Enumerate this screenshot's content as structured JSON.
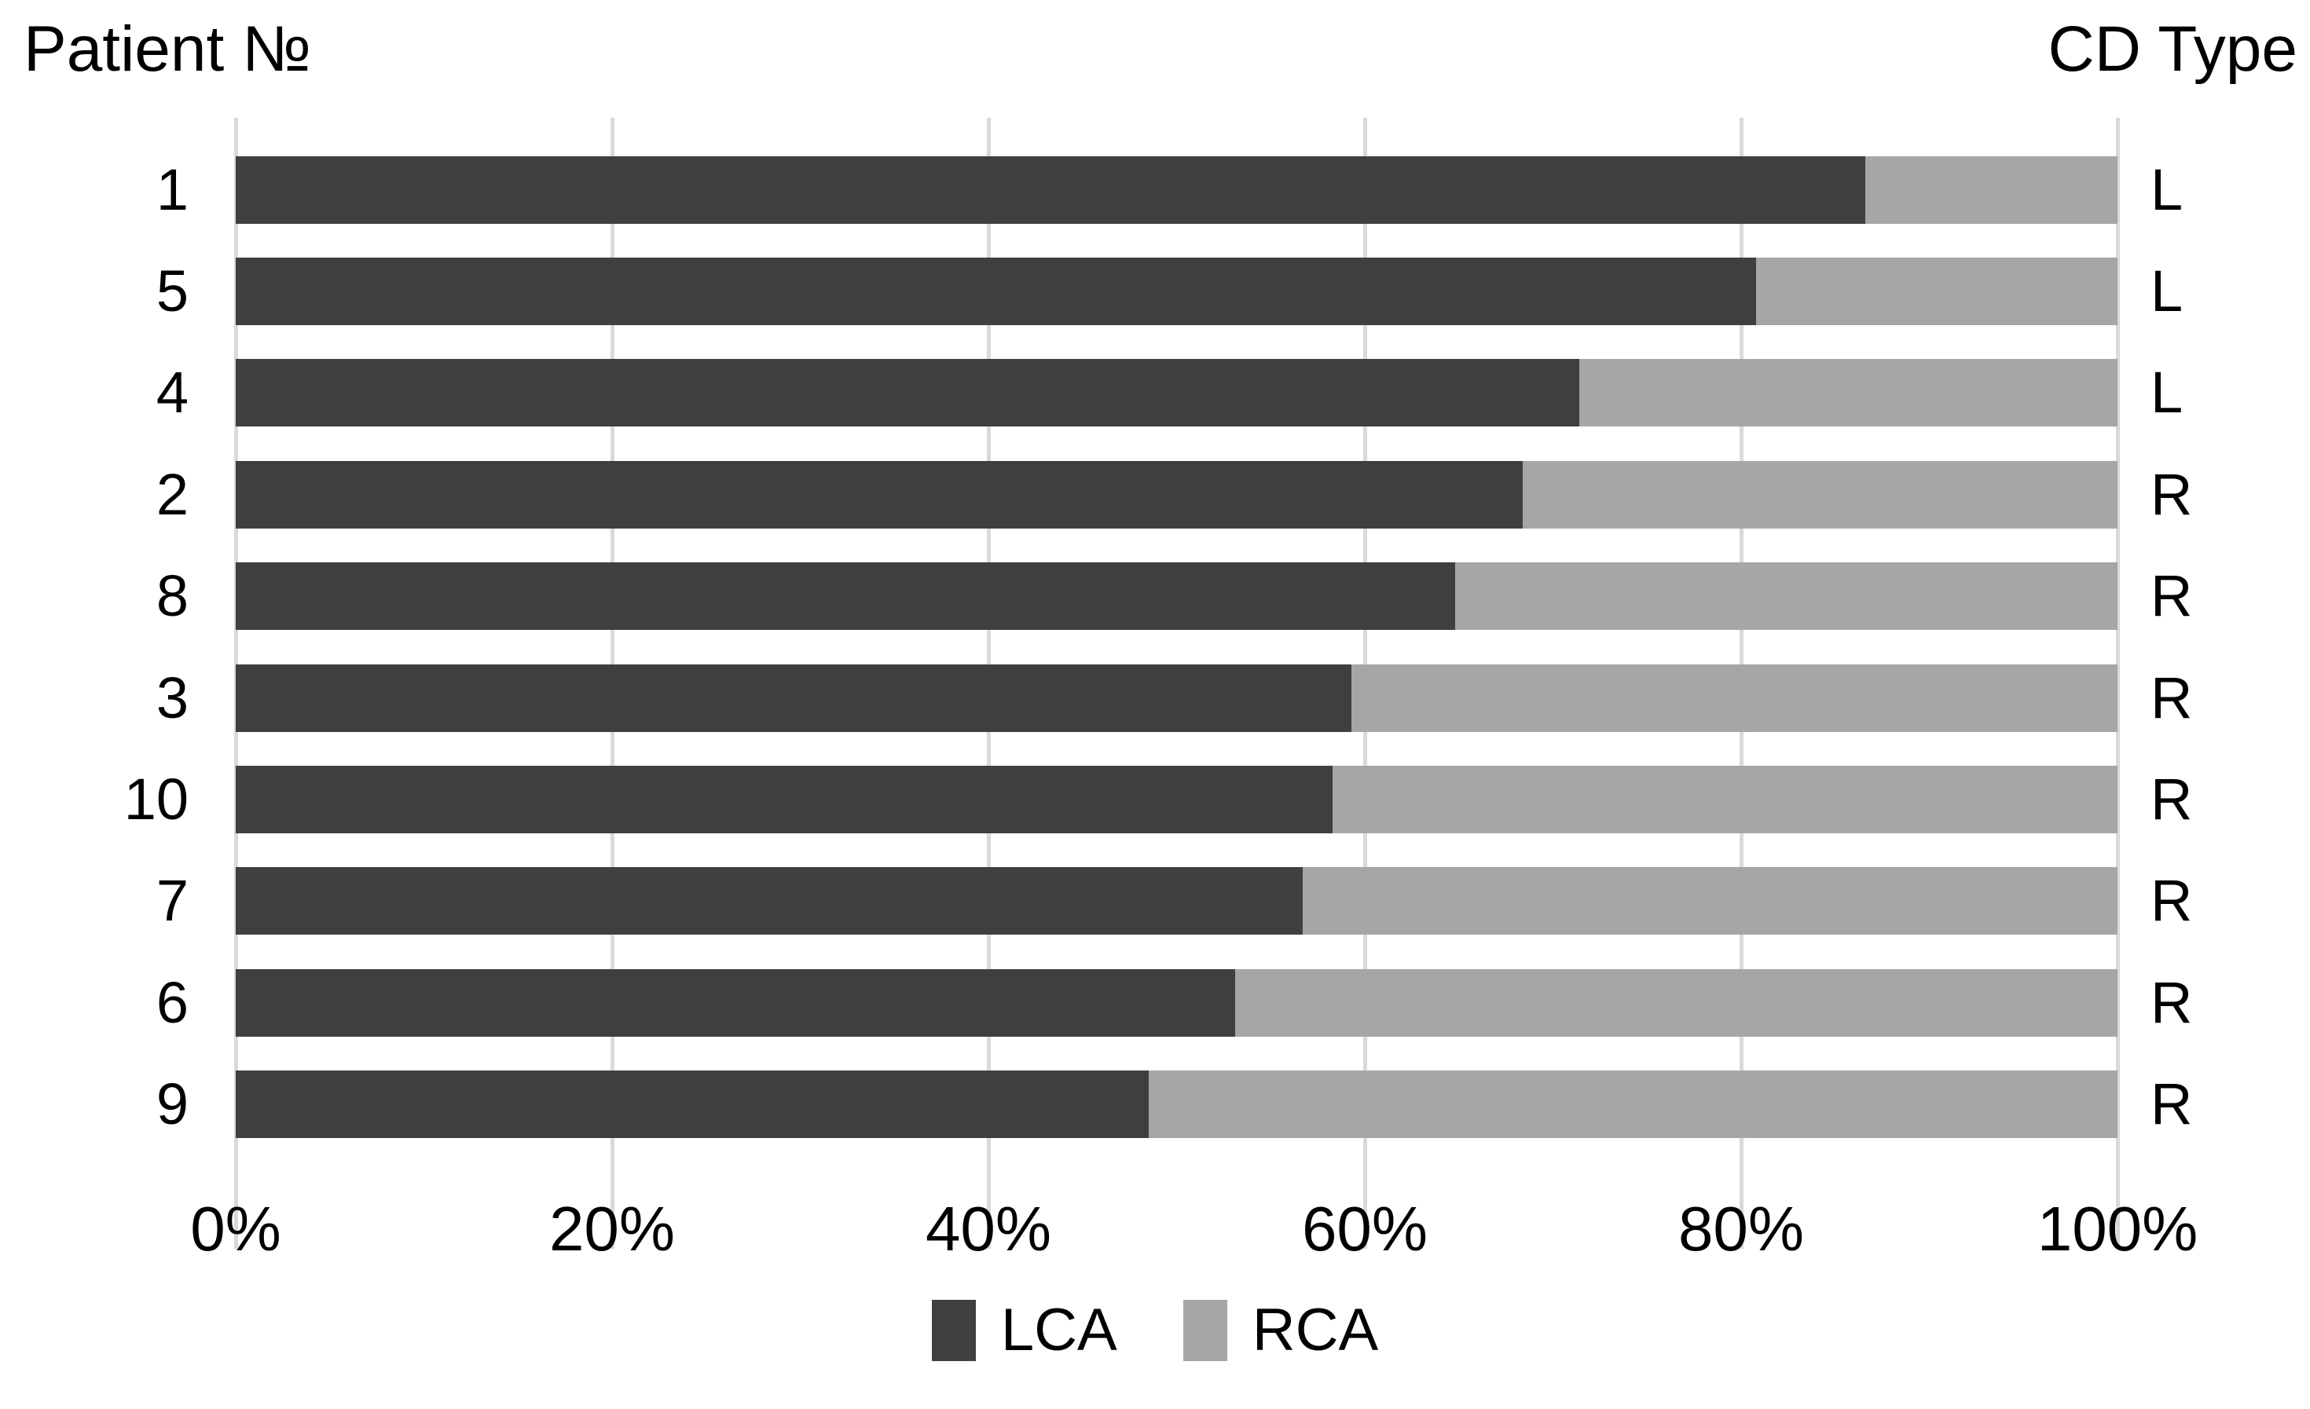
{
  "header": {
    "left_title": "Patient №",
    "right_title": "CD Type"
  },
  "axis": {
    "tick_labels": [
      "0%",
      "20%",
      "40%",
      "60%",
      "80%",
      "100%"
    ]
  },
  "legend": [
    {
      "label": "LCA",
      "color": "#3f3f3f"
    },
    {
      "label": "RCA",
      "color": "#a6a6a6"
    }
  ],
  "colors": {
    "lca": "#3f3f3f",
    "rca": "#a6a6a6",
    "gridline": "#d9d9d9",
    "background": "#ffffff",
    "text": "#000000"
  },
  "chart_data": {
    "type": "bar",
    "orientation": "horizontal",
    "stacked": true,
    "title_left": "Patient №",
    "title_right": "CD Type",
    "categories": [
      "1",
      "5",
      "4",
      "2",
      "8",
      "3",
      "10",
      "7",
      "6",
      "9"
    ],
    "cd_type": [
      "L",
      "L",
      "L",
      "R",
      "R",
      "R",
      "R",
      "R",
      "R",
      "R"
    ],
    "series": [
      {
        "name": "LCA",
        "color": "#3f3f3f",
        "values": [
          86.6,
          80.8,
          71.4,
          68.4,
          64.8,
          59.3,
          58.3,
          56.7,
          53.1,
          48.5
        ]
      },
      {
        "name": "RCA",
        "color": "#a6a6a6",
        "values": [
          13.4,
          19.2,
          28.6,
          31.6,
          35.2,
          40.7,
          41.7,
          43.3,
          46.9,
          51.5
        ]
      }
    ],
    "xlabel": "",
    "ylabel": "",
    "xlim": [
      0,
      100
    ],
    "x_ticks": [
      "0%",
      "20%",
      "40%",
      "60%",
      "80%",
      "100%"
    ],
    "grid": "vertical-only",
    "legend_position": "bottom-center"
  }
}
